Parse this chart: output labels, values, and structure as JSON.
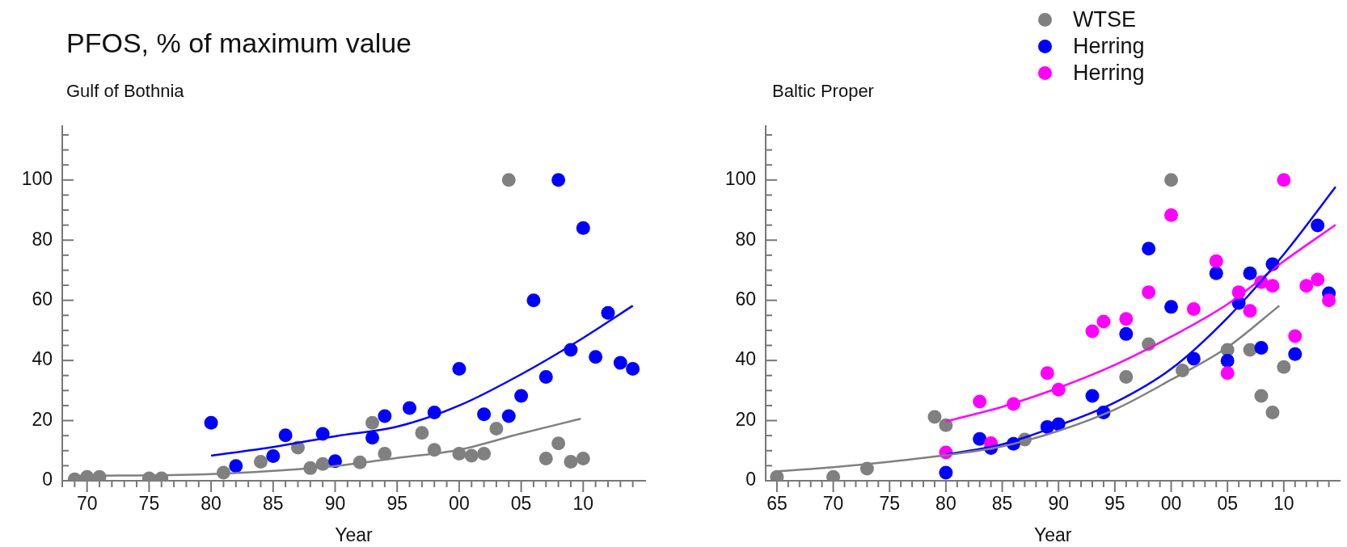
{
  "chart_data": [
    {
      "type": "scatter",
      "title": "PFOS, % of maximum value",
      "subtitle": "Gulf of Bothnia",
      "xlabel": "Year",
      "marker": "circle",
      "xlim": [
        1968,
        2015
      ],
      "ylim": [
        0,
        118
      ],
      "xticks": [
        {
          "value": 1968,
          "label": null
        },
        {
          "value": 1969,
          "label": null
        },
        {
          "value": 1970,
          "label": "70"
        },
        {
          "value": 1971,
          "label": null
        },
        {
          "value": 1972,
          "label": null
        },
        {
          "value": 1973,
          "label": null
        },
        {
          "value": 1974,
          "label": null
        },
        {
          "value": 1975,
          "label": "75"
        },
        {
          "value": 1976,
          "label": null
        },
        {
          "value": 1977,
          "label": null
        },
        {
          "value": 1978,
          "label": null
        },
        {
          "value": 1979,
          "label": null
        },
        {
          "value": 1980,
          "label": "80"
        },
        {
          "value": 1981,
          "label": null
        },
        {
          "value": 1982,
          "label": null
        },
        {
          "value": 1983,
          "label": null
        },
        {
          "value": 1984,
          "label": null
        },
        {
          "value": 1985,
          "label": "85"
        },
        {
          "value": 1986,
          "label": null
        },
        {
          "value": 1987,
          "label": null
        },
        {
          "value": 1988,
          "label": null
        },
        {
          "value": 1989,
          "label": null
        },
        {
          "value": 1990,
          "label": "90"
        },
        {
          "value": 1991,
          "label": null
        },
        {
          "value": 1992,
          "label": null
        },
        {
          "value": 1993,
          "label": null
        },
        {
          "value": 1994,
          "label": null
        },
        {
          "value": 1995,
          "label": "95"
        },
        {
          "value": 1996,
          "label": null
        },
        {
          "value": 1997,
          "label": null
        },
        {
          "value": 1998,
          "label": null
        },
        {
          "value": 1999,
          "label": null
        },
        {
          "value": 2000,
          "label": "00"
        },
        {
          "value": 2001,
          "label": null
        },
        {
          "value": 2002,
          "label": null
        },
        {
          "value": 2003,
          "label": null
        },
        {
          "value": 2004,
          "label": null
        },
        {
          "value": 2005,
          "label": "05"
        },
        {
          "value": 2006,
          "label": null
        },
        {
          "value": 2007,
          "label": null
        },
        {
          "value": 2008,
          "label": null
        },
        {
          "value": 2009,
          "label": null
        },
        {
          "value": 2010,
          "label": "10"
        },
        {
          "value": 2011,
          "label": null
        },
        {
          "value": 2012,
          "label": null
        },
        {
          "value": 2013,
          "label": null
        },
        {
          "value": 2014,
          "label": null
        }
      ],
      "yticks": [
        0,
        {
          "value": 5,
          "label": null
        },
        {
          "value": 10,
          "label": null
        },
        {
          "value": 15,
          "label": null
        },
        20,
        {
          "value": 25,
          "label": null
        },
        {
          "value": 30,
          "label": null
        },
        {
          "value": 35,
          "label": null
        },
        40,
        {
          "value": 45,
          "label": null
        },
        {
          "value": 50,
          "label": null
        },
        {
          "value": 55,
          "label": null
        },
        60,
        {
          "value": 65,
          "label": null
        },
        {
          "value": 70,
          "label": null
        },
        {
          "value": 75,
          "label": null
        },
        80,
        {
          "value": 85,
          "label": null
        },
        {
          "value": 90,
          "label": null
        },
        {
          "value": 95,
          "label": null
        },
        100,
        {
          "value": 105,
          "label": null
        },
        {
          "value": 110,
          "label": null
        },
        {
          "value": 115,
          "label": null
        }
      ],
      "series": [
        {
          "type": "line",
          "marker": "none",
          "color": "#808080",
          "x": [
            1969,
            1980,
            1985,
            1990,
            1995,
            2000,
            2005,
            2009.8
          ],
          "values": [
            1.6,
            2.2,
            3.3,
            4.9,
            7.6,
            10.3,
            15.7,
            20.6
          ]
        },
        {
          "type": "line",
          "marker": "none",
          "color": "#0000ff",
          "x": [
            1980,
            1985,
            1990,
            1995,
            2000,
            2005,
            2010,
            2014
          ],
          "values": [
            8.3,
            11.2,
            14.8,
            18,
            25,
            35.4,
            47.5,
            58.2
          ]
        },
        {
          "color": "#808080",
          "x": [
            1969,
            1970,
            1971,
            1975,
            1976,
            1981,
            1984,
            1987,
            1988,
            1989,
            1992,
            1993,
            1994,
            1997,
            1998,
            2000,
            2001,
            2002,
            2003,
            2004,
            2007,
            2008,
            2009,
            2010
          ],
          "values": [
            0.5,
            1.3,
            1.3,
            0.8,
            0.8,
            2.7,
            6.3,
            11,
            4.2,
            5.6,
            6.1,
            19.3,
            9,
            15.9,
            10.3,
            9,
            8.3,
            9,
            17.3,
            100,
            7.4,
            12.4,
            6.3,
            7.4
          ]
        },
        {
          "color": "#0000ff",
          "x": [
            1980,
            1982,
            1985,
            1986,
            1989,
            1990,
            1993,
            1994,
            1996,
            1998,
            2000,
            2002,
            2004,
            2005,
            2006,
            2007,
            2008,
            2009,
            2010,
            2011,
            2012,
            2013,
            2014
          ],
          "values": [
            19.3,
            4.9,
            8.2,
            15.1,
            15.6,
            6.5,
            14.3,
            21.5,
            24.2,
            22.7,
            37.2,
            22.1,
            21.5,
            28.2,
            60,
            34.5,
            100,
            43.5,
            84,
            41.2,
            55.8,
            39.2,
            37.2
          ]
        }
      ]
    },
    {
      "type": "scatter",
      "subtitle": "Baltic Proper",
      "xlabel": "Year",
      "marker": "circle",
      "legend": "top",
      "xlim": [
        1964,
        2015
      ],
      "ylim": [
        0,
        118
      ],
      "xticks": [
        {
          "value": 1965,
          "label": "65"
        },
        {
          "value": 1966,
          "label": null
        },
        {
          "value": 1967,
          "label": null
        },
        {
          "value": 1968,
          "label": null
        },
        {
          "value": 1969,
          "label": null
        },
        {
          "value": 1970,
          "label": "70"
        },
        {
          "value": 1971,
          "label": null
        },
        {
          "value": 1972,
          "label": null
        },
        {
          "value": 1973,
          "label": null
        },
        {
          "value": 1974,
          "label": null
        },
        {
          "value": 1975,
          "label": "75"
        },
        {
          "value": 1976,
          "label": null
        },
        {
          "value": 1977,
          "label": null
        },
        {
          "value": 1978,
          "label": null
        },
        {
          "value": 1979,
          "label": null
        },
        {
          "value": 1980,
          "label": "80"
        },
        {
          "value": 1981,
          "label": null
        },
        {
          "value": 1982,
          "label": null
        },
        {
          "value": 1983,
          "label": null
        },
        {
          "value": 1984,
          "label": null
        },
        {
          "value": 1985,
          "label": "85"
        },
        {
          "value": 1986,
          "label": null
        },
        {
          "value": 1987,
          "label": null
        },
        {
          "value": 1988,
          "label": null
        },
        {
          "value": 1989,
          "label": null
        },
        {
          "value": 1990,
          "label": "90"
        },
        {
          "value": 1991,
          "label": null
        },
        {
          "value": 1992,
          "label": null
        },
        {
          "value": 1993,
          "label": null
        },
        {
          "value": 1994,
          "label": null
        },
        {
          "value": 1995,
          "label": "95"
        },
        {
          "value": 1996,
          "label": null
        },
        {
          "value": 1997,
          "label": null
        },
        {
          "value": 1998,
          "label": null
        },
        {
          "value": 1999,
          "label": null
        },
        {
          "value": 2000,
          "label": "00"
        },
        {
          "value": 2001,
          "label": null
        },
        {
          "value": 2002,
          "label": null
        },
        {
          "value": 2003,
          "label": null
        },
        {
          "value": 2004,
          "label": null
        },
        {
          "value": 2005,
          "label": "05"
        },
        {
          "value": 2006,
          "label": null
        },
        {
          "value": 2007,
          "label": null
        },
        {
          "value": 2008,
          "label": null
        },
        {
          "value": 2009,
          "label": null
        },
        {
          "value": 2010,
          "label": "10"
        },
        {
          "value": 2011,
          "label": null
        },
        {
          "value": 2012,
          "label": null
        },
        {
          "value": 2013,
          "label": null
        },
        {
          "value": 2014,
          "label": null
        }
      ],
      "yticks": [
        0,
        {
          "value": 5,
          "label": null
        },
        {
          "value": 10,
          "label": null
        },
        {
          "value": 15,
          "label": null
        },
        20,
        {
          "value": 25,
          "label": null
        },
        {
          "value": 30,
          "label": null
        },
        {
          "value": 35,
          "label": null
        },
        40,
        {
          "value": 45,
          "label": null
        },
        {
          "value": 50,
          "label": null
        },
        {
          "value": 55,
          "label": null
        },
        60,
        {
          "value": 65,
          "label": null
        },
        {
          "value": 70,
          "label": null
        },
        {
          "value": 75,
          "label": null
        },
        80,
        {
          "value": 85,
          "label": null
        },
        {
          "value": 90,
          "label": null
        },
        {
          "value": 95,
          "label": null
        },
        100,
        {
          "value": 105,
          "label": null
        },
        {
          "value": 110,
          "label": null
        },
        {
          "value": 115,
          "label": null
        }
      ],
      "series": [
        {
          "name": "WTSE",
          "color": "#808080",
          "x": [
            1965,
            1970,
            1973,
            1979,
            1980,
            1987,
            1996,
            1998,
            2000,
            2001,
            2005,
            2007,
            2008,
            2009,
            2010
          ],
          "values": [
            1.3,
            1.3,
            4,
            21.2,
            18.5,
            13.7,
            34.5,
            45.4,
            100,
            36.7,
            43.5,
            43.5,
            28.2,
            22.7,
            37.8
          ]
        },
        {
          "name": "Herring",
          "color": "#0000ff",
          "x": [
            1980,
            1983,
            1984,
            1986,
            1989,
            1990,
            1993,
            1994,
            1996,
            1998,
            2000,
            2002,
            2004,
            2005,
            2006,
            2007,
            2008,
            2009,
            2011,
            2013,
            2014
          ],
          "values": [
            2.7,
            13.9,
            10.9,
            12.3,
            17.9,
            18.8,
            28.2,
            22.7,
            48.8,
            77.2,
            57.8,
            40.6,
            69,
            39.9,
            59.1,
            69,
            44.2,
            72,
            42.1,
            84.9,
            62.3
          ]
        },
        {
          "name": "Herring",
          "color": "#ff00ff",
          "x": [
            1980,
            1983,
            1984,
            1986,
            1989,
            1990,
            1993,
            1994,
            1996,
            1998,
            2000,
            2002,
            2004,
            2005,
            2006,
            2007,
            2008,
            2009,
            2010,
            2011,
            2012,
            2013,
            2014
          ],
          "values": [
            9.4,
            26.3,
            12.5,
            25.5,
            35.8,
            30.3,
            49.7,
            52.9,
            53.8,
            62.7,
            88.3,
            57.1,
            73,
            35.8,
            62.7,
            56.5,
            66,
            64.8,
            100,
            48.1,
            64.8,
            66.9,
            60
          ]
        },
        {
          "type": "line",
          "marker": "none",
          "color": "#808080",
          "x": [
            1965,
            1970,
            1975,
            1980,
            1985,
            1990,
            1995,
            2000,
            2005,
            2009.6
          ],
          "values": [
            3.1,
            4.5,
            6.3,
            8.5,
            11.4,
            16.6,
            23.7,
            33.6,
            44.4,
            58.2
          ]
        },
        {
          "type": "line",
          "marker": "none",
          "color": "#0000ff",
          "x": [
            1980,
            1985,
            1990,
            1995,
            2000,
            2005,
            2010,
            2014.6
          ],
          "values": [
            8.7,
            12.1,
            18.4,
            26,
            37.2,
            54.2,
            75.3,
            97.7
          ]
        },
        {
          "type": "line",
          "marker": "none",
          "color": "#ff00ff",
          "x": [
            1980,
            1985,
            1990,
            1995,
            2000,
            2005,
            2010,
            2014.6
          ],
          "values": [
            19.7,
            24.6,
            30.9,
            38.5,
            47.9,
            58.7,
            73,
            85.1
          ]
        }
      ]
    }
  ]
}
